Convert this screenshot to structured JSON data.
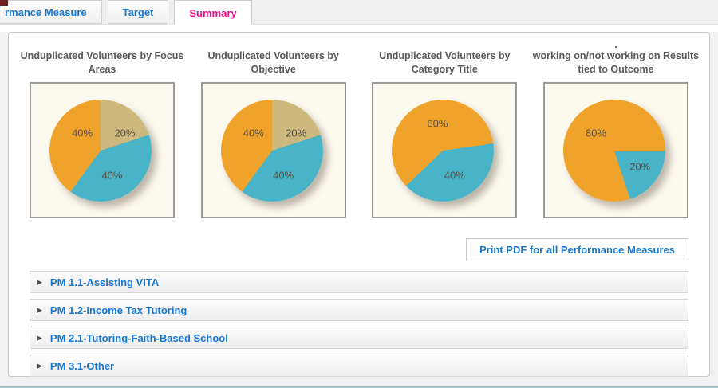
{
  "tabs": [
    {
      "label": "rmance Measure",
      "active": false
    },
    {
      "label": "Target",
      "active": false
    },
    {
      "label": "Summary",
      "active": true
    }
  ],
  "colors": {
    "accent_blue": "#1778d2",
    "active_tab_magenta": "#ec128b",
    "pie_orange": "#f0a32b",
    "pie_tan": "#cdb97e",
    "pie_teal": "#49b4c7",
    "chart_bg_cream": "#fcf9ef",
    "bottom_line_teal": "#9fc6c9",
    "corner_artifact_maroon": "#6d1f1f"
  },
  "chart_data": [
    {
      "type": "pie",
      "title": "Unduplicated Volunteers by Focus Areas",
      "clipped_line": "",
      "start_angle_deg": 0,
      "legend": "none",
      "slices": [
        {
          "label": "20%",
          "value": 20,
          "color": "#cdb97e",
          "label_pos": [
            66,
            37
          ]
        },
        {
          "label": "40%",
          "value": 40,
          "color": "#49b4c7",
          "label_pos": [
            57,
            69
          ]
        },
        {
          "label": "40%",
          "value": 40,
          "color": "#f0a32b",
          "label_pos": [
            36,
            37
          ]
        }
      ]
    },
    {
      "type": "pie",
      "title": "Unduplicated Volunteers by Objective",
      "clipped_line": "",
      "start_angle_deg": 0,
      "legend": "none",
      "slices": [
        {
          "label": "20%",
          "value": 20,
          "color": "#cdb97e",
          "label_pos": [
            66,
            37
          ]
        },
        {
          "label": "40%",
          "value": 40,
          "color": "#49b4c7",
          "label_pos": [
            57,
            69
          ]
        },
        {
          "label": "40%",
          "value": 40,
          "color": "#f0a32b",
          "label_pos": [
            36,
            37
          ]
        }
      ]
    },
    {
      "type": "pie",
      "title": "Unduplicated Volunteers by Category Title",
      "clipped_line": "",
      "start_angle_deg": 82,
      "legend": "none",
      "slices": [
        {
          "label": "40%",
          "value": 40,
          "color": "#49b4c7",
          "label_pos": [
            57,
            69
          ]
        },
        {
          "label": "60%",
          "value": 60,
          "color": "#f0a32b",
          "label_pos": [
            45,
            30
          ]
        }
      ]
    },
    {
      "type": "pie",
      "title": "working on/not working on Results tied to Outcome",
      "clipped_line": ".",
      "start_angle_deg": 90,
      "legend": "none",
      "slices": [
        {
          "label": "20%",
          "value": 20,
          "color": "#49b4c7",
          "label_pos": [
            67,
            62
          ]
        },
        {
          "label": "80%",
          "value": 80,
          "color": "#f0a32b",
          "label_pos": [
            36,
            37
          ]
        }
      ]
    }
  ],
  "actions": {
    "print_pdf_label": "Print PDF for all Performance Measures"
  },
  "accordion": {
    "arrow_glyph": "▶",
    "items": [
      {
        "label": "PM 1.1-Assisting VITA"
      },
      {
        "label": "PM 1.2-Income Tax Tutoring"
      },
      {
        "label": "PM 2.1-Tutoring-Faith-Based School"
      },
      {
        "label": "PM 3.1-Other"
      }
    ]
  }
}
